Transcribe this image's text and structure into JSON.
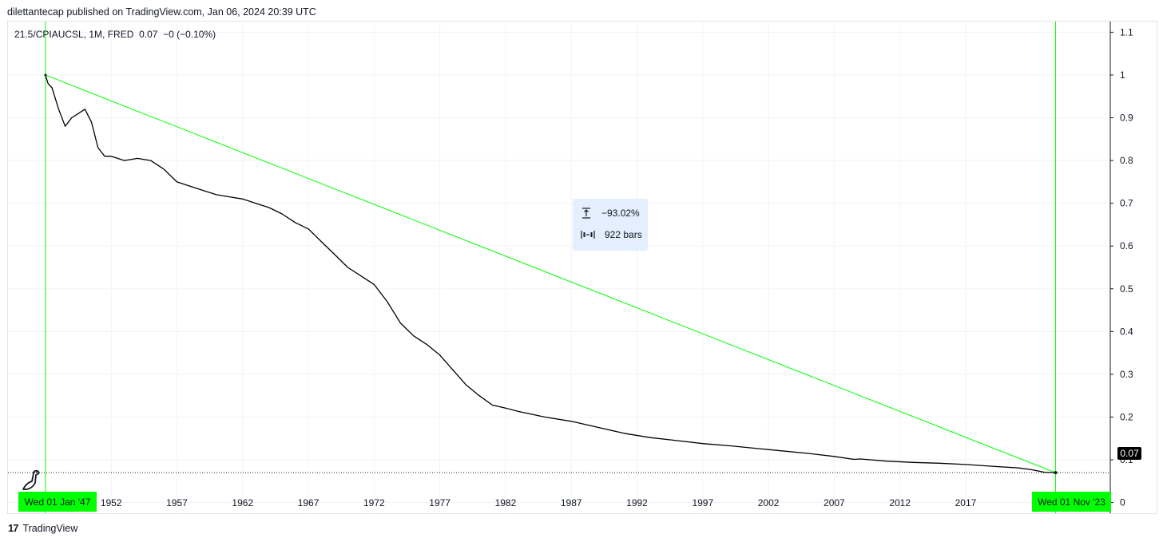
{
  "header": {
    "published": "dilettantecap published on TradingView.com, Jan 06, 2024 20:39 UTC"
  },
  "legend": {
    "symbol": "21.5/CPIAUCSL, 1M, FRED",
    "value": "0.07",
    "change": "−0 (−0.10%)"
  },
  "measure_tool": {
    "percent": "−93.02%",
    "bars": "922 bars"
  },
  "range_start_label": "Wed 01 Jan '47",
  "range_end_label": "Wed 01 Nov '23",
  "last_price_label": "0.07",
  "footer": {
    "brand": "TradingView",
    "logo": "17"
  },
  "colors": {
    "line": "#000000",
    "accent": "#00ff00",
    "grid": "#f0f3fa"
  },
  "chart_data": {
    "type": "line",
    "series": [
      {
        "x": [
          1947.0,
          1947.2,
          1947.5,
          1948.0,
          1948.5,
          1949.0,
          1949.5,
          1950.0,
          1950.5,
          1951.0,
          1951.5,
          1952.0,
          1953.0,
          1954.0,
          1955.0,
          1956.0,
          1957.0,
          1958.0,
          1959.0,
          1960.0,
          1961.0,
          1962.0,
          1963.0,
          1964.0,
          1965.0,
          1966.0,
          1967.0,
          1968.0,
          1969.0,
          1970.0,
          1971.0,
          1972.0,
          1973.0,
          1974.0,
          1975.0,
          1976.0,
          1977.0,
          1978.0,
          1979.0,
          1980.0,
          1981.0,
          1982.0,
          1983.0,
          1985.0,
          1987.0,
          1989.0,
          1991.0,
          1993.0,
          1995.0,
          1997.0,
          1999.0,
          2001.0,
          2003.0,
          2005.0,
          2007.0,
          2008.5,
          2009.0,
          2011.0,
          2013.0,
          2015.0,
          2017.0,
          2019.0,
          2021.0,
          2022.0,
          2023.0,
          2023.84
        ],
        "y": [
          1.0,
          0.98,
          0.97,
          0.92,
          0.88,
          0.9,
          0.91,
          0.92,
          0.89,
          0.83,
          0.81,
          0.81,
          0.8,
          0.805,
          0.8,
          0.78,
          0.75,
          0.74,
          0.73,
          0.72,
          0.715,
          0.71,
          0.7,
          0.69,
          0.675,
          0.655,
          0.64,
          0.61,
          0.58,
          0.55,
          0.53,
          0.51,
          0.47,
          0.42,
          0.39,
          0.37,
          0.345,
          0.31,
          0.275,
          0.25,
          0.228,
          0.221,
          0.213,
          0.2,
          0.19,
          0.176,
          0.162,
          0.152,
          0.145,
          0.138,
          0.133,
          0.127,
          0.121,
          0.115,
          0.108,
          0.101,
          0.102,
          0.097,
          0.094,
          0.092,
          0.089,
          0.085,
          0.081,
          0.077,
          0.071,
          0.07
        ]
      }
    ],
    "trendline": {
      "from": [
        1947.0,
        1.0
      ],
      "to": [
        2023.84,
        0.07
      ]
    },
    "vlines": [
      1947.0,
      2023.84
    ],
    "last_value": 0.07,
    "xlim": [
      1944.15,
      2028.0
    ],
    "ylim": [
      -0.025,
      1.125
    ],
    "x_ticks": [
      "1952",
      "1957",
      "1962",
      "1967",
      "1972",
      "1977",
      "1982",
      "1987",
      "1992",
      "1997",
      "2002",
      "2007",
      "2012",
      "2017"
    ],
    "x_tick_values": [
      1952,
      1957,
      1962,
      1967,
      1972,
      1977,
      1982,
      1987,
      1992,
      1997,
      2002,
      2007,
      2012,
      2017
    ],
    "y_ticks": [
      "0",
      "0.1",
      "0.2",
      "0.3",
      "0.4",
      "0.5",
      "0.6",
      "0.7",
      "0.8",
      "0.9",
      "1",
      "1.1"
    ],
    "y_tick_values": [
      0,
      0.1,
      0.2,
      0.3,
      0.4,
      0.5,
      0.6,
      0.7,
      0.8,
      0.9,
      1.0,
      1.1
    ],
    "grid": true
  }
}
